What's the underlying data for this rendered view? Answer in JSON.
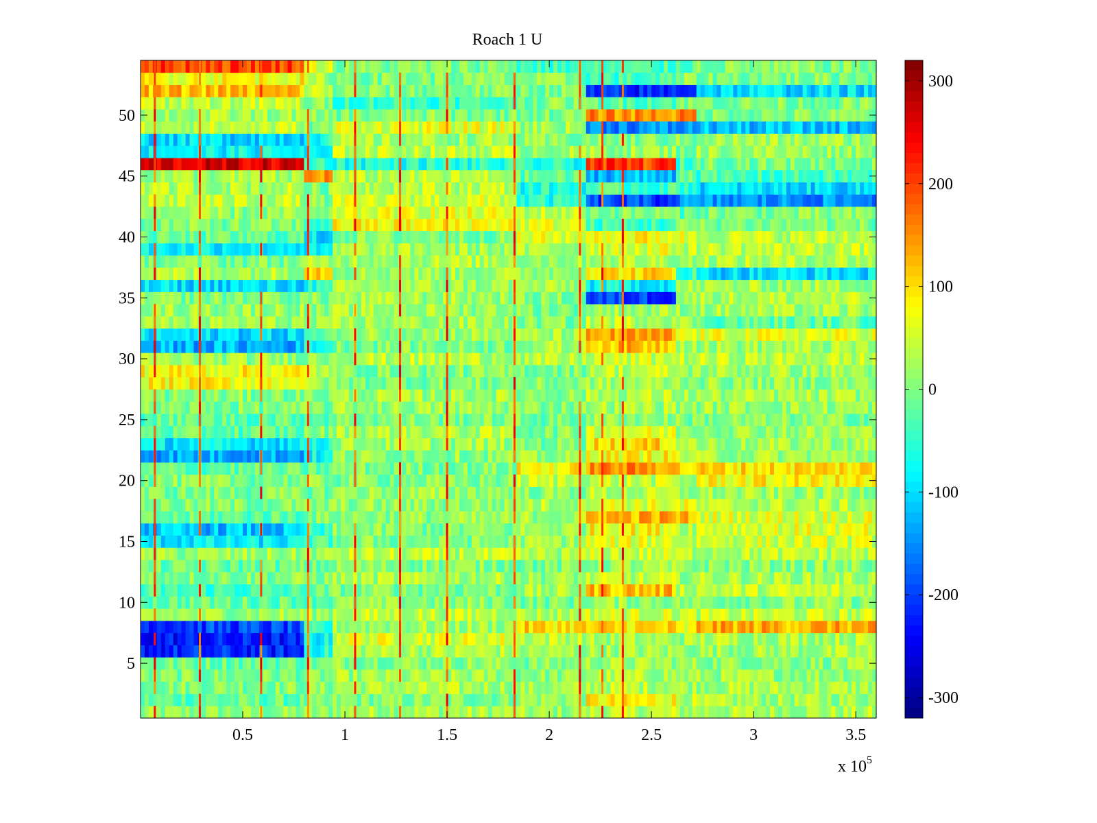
{
  "chart_data": {
    "type": "heatmap",
    "title": "Roach 1 U",
    "xlabel": "",
    "ylabel": "",
    "x_multiplier_label": "x 10",
    "x_multiplier_exponent": "5",
    "xlim": [
      0,
      3.6
    ],
    "ylim": [
      0.5,
      54.5
    ],
    "x_ticks": [
      0.5,
      1,
      1.5,
      2,
      2.5,
      3,
      3.5
    ],
    "x_tick_labels": [
      "0.5",
      "1",
      "1.5",
      "2",
      "2.5",
      "3",
      "3.5"
    ],
    "y_ticks": [
      5,
      10,
      15,
      20,
      25,
      30,
      35,
      40,
      45,
      50
    ],
    "y_tick_labels": [
      "5",
      "10",
      "15",
      "20",
      "25",
      "30",
      "35",
      "40",
      "45",
      "50"
    ],
    "colorbar": {
      "colormap": "jet",
      "clim": [
        -320,
        320
      ],
      "ticks": [
        300,
        200,
        100,
        0,
        -100,
        -200,
        -300
      ],
      "tick_labels": [
        "300",
        "200",
        "100",
        "0",
        "-100",
        "-200",
        "-300"
      ]
    },
    "rows": 54,
    "segment_edges_x": [
      0,
      0.8,
      0.95,
      1.85,
      2.18,
      2.62,
      2.73,
      3.6
    ],
    "default_segment_means": [
      0,
      0,
      20,
      10,
      30,
      20,
      20
    ],
    "row_segment_means": {
      "54": [
        200,
        60,
        0,
        -40,
        -40,
        -20,
        0
      ],
      "53": [
        80,
        20,
        0,
        0,
        -40,
        0,
        0
      ],
      "52": [
        120,
        40,
        0,
        0,
        -220,
        -200,
        -100
      ],
      "51": [
        40,
        0,
        -40,
        0,
        -20,
        0,
        0
      ],
      "50": [
        20,
        0,
        0,
        0,
        150,
        150,
        0
      ],
      "49": [
        40,
        0,
        60,
        20,
        -150,
        -150,
        -120
      ],
      "48": [
        -100,
        -60,
        20,
        0,
        0,
        0,
        20
      ],
      "47": [
        -80,
        -100,
        40,
        20,
        20,
        0,
        20
      ],
      "46": [
        260,
        -40,
        -60,
        -60,
        200,
        -40,
        0
      ],
      "45": [
        20,
        150,
        30,
        -20,
        -120,
        0,
        -40
      ],
      "44": [
        30,
        0,
        40,
        -60,
        -40,
        -40,
        -100
      ],
      "43": [
        40,
        0,
        50,
        -60,
        -200,
        -150,
        -150
      ],
      "42": [
        10,
        -20,
        60,
        40,
        0,
        -20,
        0
      ],
      "41": [
        0,
        -40,
        80,
        60,
        -40,
        0,
        0
      ],
      "40": [
        -20,
        -100,
        0,
        60,
        80,
        60,
        40
      ],
      "39": [
        -80,
        -100,
        20,
        20,
        60,
        40,
        40
      ],
      "38": [
        0,
        20,
        30,
        20,
        30,
        20,
        30
      ],
      "37": [
        30,
        120,
        20,
        20,
        100,
        -40,
        -100
      ],
      "36": [
        -100,
        -60,
        20,
        20,
        -80,
        20,
        20
      ],
      "35": [
        0,
        0,
        20,
        0,
        -200,
        20,
        30
      ],
      "34": [
        20,
        0,
        20,
        0,
        20,
        20,
        20
      ],
      "33": [
        20,
        0,
        20,
        0,
        40,
        20,
        -20
      ],
      "32": [
        -100,
        -40,
        20,
        20,
        130,
        60,
        60
      ],
      "31": [
        -130,
        -60,
        0,
        20,
        120,
        40,
        20
      ],
      "29": [
        80,
        40,
        0,
        0,
        40,
        20,
        20
      ],
      "28": [
        80,
        20,
        0,
        0,
        20,
        20,
        10
      ],
      "24": [
        -20,
        0,
        30,
        0,
        60,
        20,
        20
      ],
      "23": [
        -90,
        -60,
        20,
        0,
        100,
        40,
        20
      ],
      "22": [
        -130,
        -80,
        10,
        10,
        80,
        40,
        20
      ],
      "21": [
        -20,
        -20,
        0,
        80,
        150,
        100,
        100
      ],
      "20": [
        0,
        0,
        0,
        40,
        40,
        20,
        80
      ],
      "18": [
        0,
        0,
        10,
        30,
        60,
        60,
        30
      ],
      "17": [
        -20,
        0,
        10,
        20,
        130,
        120,
        60
      ],
      "16": [
        -120,
        -60,
        0,
        20,
        80,
        40,
        60
      ],
      "15": [
        -90,
        -40,
        0,
        20,
        60,
        40,
        50
      ],
      "11": [
        -40,
        -20,
        0,
        20,
        120,
        40,
        40
      ],
      "8": [
        -200,
        -60,
        20,
        100,
        100,
        60,
        130
      ],
      "7": [
        -230,
        -80,
        60,
        40,
        20,
        20,
        30
      ],
      "6": [
        -220,
        -60,
        30,
        20,
        20,
        20,
        20
      ],
      "2": [
        -20,
        -20,
        0,
        20,
        80,
        40,
        20
      ]
    },
    "vertical_streaks_x": [
      0.07,
      0.29,
      0.59,
      0.82,
      1.05,
      1.27,
      1.5,
      1.83,
      2.15,
      2.26,
      2.36
    ],
    "streak_value": 200,
    "noise_amplitude": 45
  }
}
